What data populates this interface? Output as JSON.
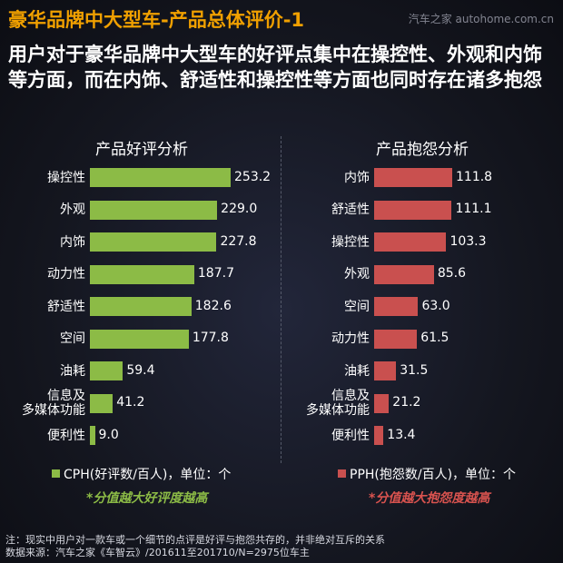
{
  "header": {
    "title": "豪华品牌中大型车-产品总体评价-1",
    "watermark": "汽车之家 autohome.com.cn"
  },
  "subtitle": "用户对于豪华品牌中大型车的好评点集中在操控性、外观和内饰等方面，而在内饰、舒适性和操控性等方面也同时存在诸多抱怨",
  "chart_data": [
    {
      "type": "bar",
      "orientation": "horizontal",
      "title": "产品好评分析",
      "categories": [
        "操控性",
        "外观",
        "内饰",
        "动力性",
        "舒适性",
        "空间",
        "油耗",
        "信息及多媒体功能",
        "便利性"
      ],
      "category_lines": [
        [
          "操控性"
        ],
        [
          "外观"
        ],
        [
          "内饰"
        ],
        [
          "动力性"
        ],
        [
          "舒适性"
        ],
        [
          "空间"
        ],
        [
          "油耗"
        ],
        [
          "信息及",
          "多媒体功能"
        ],
        [
          "便利性"
        ]
      ],
      "values": [
        253.2,
        229.0,
        227.8,
        187.7,
        182.6,
        177.8,
        59.4,
        41.2,
        9.0
      ],
      "value_labels": [
        "253.2",
        "229.0",
        "227.8",
        "187.7",
        "182.6",
        "177.8",
        "59.4",
        "41.2",
        "9.0"
      ],
      "legend": "CPH(好评数/百人)，单位：个",
      "note": "*分值越大好评度越高",
      "color": "#8cbb46",
      "note_color": "#8cbb46"
    },
    {
      "type": "bar",
      "orientation": "horizontal",
      "title": "产品抱怨分析",
      "categories": [
        "内饰",
        "舒适性",
        "操控性",
        "外观",
        "空间",
        "动力性",
        "油耗",
        "信息及多媒体功能",
        "便利性"
      ],
      "category_lines": [
        [
          "内饰"
        ],
        [
          "舒适性"
        ],
        [
          "操控性"
        ],
        [
          "外观"
        ],
        [
          "空间"
        ],
        [
          "动力性"
        ],
        [
          "油耗"
        ],
        [
          "信息及",
          "多媒体功能"
        ],
        [
          "便利性"
        ]
      ],
      "values": [
        111.8,
        111.1,
        103.3,
        85.6,
        63.0,
        61.5,
        31.5,
        21.2,
        13.4
      ],
      "value_labels": [
        "111.8",
        "111.1",
        "103.3",
        "85.6",
        "63.0",
        "61.5",
        "31.5",
        "21.2",
        "13.4"
      ],
      "legend": "PPH(抱怨数/百人)，单位：个",
      "note": "*分值越大抱怨度越高",
      "color": "#c9504f",
      "note_color": "#d9534f"
    }
  ],
  "footer": {
    "note": "注：现实中用户对一款车或一个细节的点评是好评与抱怨共存的，并非绝对互斥的关系",
    "source": "数据来源：汽车之家《车智云》/201611至201710/N=2975位车主"
  }
}
